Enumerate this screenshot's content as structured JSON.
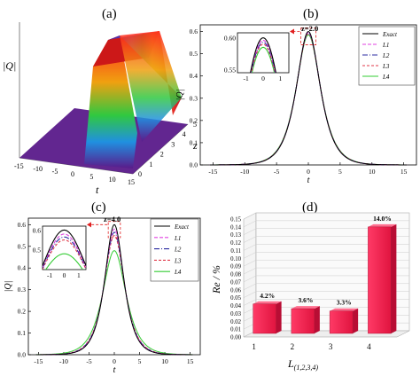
{
  "panels": {
    "a": {
      "label": "(a)"
    },
    "b": {
      "label": "(b)"
    },
    "c": {
      "label": "(c)"
    },
    "d": {
      "label": "(d)"
    }
  },
  "colors": {
    "exact": "#000000",
    "L1": "#e040e0",
    "L2": "#2a2aa0",
    "L3": "#e03a4a",
    "L4": "#33cc33",
    "bar": "#ee1c4e",
    "zmark": "#e02020"
  },
  "chart_data": [
    {
      "id": "a",
      "type": "surface",
      "ylabel": "|Q|",
      "xlabel": "t",
      "zlabel": "z",
      "x_ticks": [
        "-15",
        "-10",
        "-5",
        "0",
        "5",
        "10",
        "15"
      ],
      "z_ticks": [
        "0",
        "1",
        "2",
        "3",
        "4",
        "5"
      ],
      "grid": false
    },
    {
      "id": "b",
      "type": "line",
      "xlabel": "t",
      "ylabel": "|Q|",
      "xlim": [
        -17,
        17
      ],
      "ylim": [
        0,
        0.63
      ],
      "x_ticks": [
        "-15",
        "-10",
        "-5",
        "0",
        "5",
        "10",
        "15"
      ],
      "y_ticks": [
        "0.0",
        "0.1",
        "0.2",
        "0.3",
        "0.4",
        "0.5",
        "0.6"
      ],
      "annotation": "z=2.0",
      "legend_position": "top-right",
      "series": [
        {
          "name": "Exact",
          "peak": 0.6,
          "width": 1.67,
          "key": "exact",
          "dash": ""
        },
        {
          "name": "L1",
          "peak": 0.596,
          "width": 1.68,
          "key": "L1",
          "dash": "4,2"
        },
        {
          "name": "L2",
          "peak": 0.593,
          "width": 1.69,
          "key": "L2",
          "dash": "6,2,1,2"
        },
        {
          "name": "L3",
          "peak": 0.59,
          "width": 1.7,
          "key": "L3",
          "dash": "3,2"
        },
        {
          "name": "L4",
          "peak": 0.585,
          "width": 1.72,
          "key": "L4",
          "dash": ""
        }
      ],
      "inset": {
        "xlim": [
          -1.5,
          1.5
        ],
        "ylim": [
          0.545,
          0.608
        ],
        "x_ticks": [
          "-1",
          "0",
          "1"
        ],
        "y_ticks": [
          "0.55",
          "0.60"
        ]
      }
    },
    {
      "id": "c",
      "type": "line",
      "xlabel": "t",
      "ylabel": "|Q|",
      "xlim": [
        -17,
        17
      ],
      "ylim": [
        0,
        0.63
      ],
      "x_ticks": [
        "-15",
        "-10",
        "-5",
        "0",
        "5",
        "10",
        "15"
      ],
      "y_ticks": [
        "0.0",
        "0.1",
        "0.2",
        "0.3",
        "0.4",
        "0.5",
        "0.6"
      ],
      "annotation": "z=4.0",
      "legend_position": "top-right",
      "series": [
        {
          "name": "Exact",
          "peak": 0.6,
          "width": 1.67,
          "key": "exact",
          "dash": ""
        },
        {
          "name": "L1",
          "peak": 0.58,
          "width": 1.72,
          "key": "L1",
          "dash": "4,2"
        },
        {
          "name": "L2",
          "peak": 0.565,
          "width": 1.76,
          "key": "L2",
          "dash": "6,2,1,2"
        },
        {
          "name": "L3",
          "peak": 0.55,
          "width": 1.8,
          "key": "L3",
          "dash": "3,2"
        },
        {
          "name": "L4",
          "peak": 0.48,
          "width": 2.05,
          "key": "L4",
          "dash": ""
        }
      ],
      "inset": {
        "xlim": [
          -1.5,
          1.5
        ],
        "ylim": [
          0.4,
          0.62
        ],
        "x_ticks": [
          "-1",
          "0",
          "1"
        ],
        "y_ticks": [
          "0.5",
          "0.6"
        ]
      }
    },
    {
      "id": "d",
      "type": "bar",
      "categories": [
        "1",
        "2",
        "3",
        "4"
      ],
      "values": [
        0.042,
        0.036,
        0.033,
        0.14
      ],
      "data_labels": [
        "4.2%",
        "3.6%",
        "3.3%",
        "14.0%"
      ],
      "ylabel": "Re / %",
      "xlabel": "L",
      "xlabel_subscript": "(1,2,3,4)",
      "ylim": [
        0,
        0.15
      ],
      "y_ticks": [
        "0.00",
        "0.01",
        "0.02",
        "0.03",
        "0.04",
        "0.05",
        "0.06",
        "0.07",
        "0.08",
        "0.09",
        "0.10",
        "0.11",
        "0.12",
        "0.13",
        "0.14",
        "0.15"
      ],
      "grid": true
    }
  ]
}
